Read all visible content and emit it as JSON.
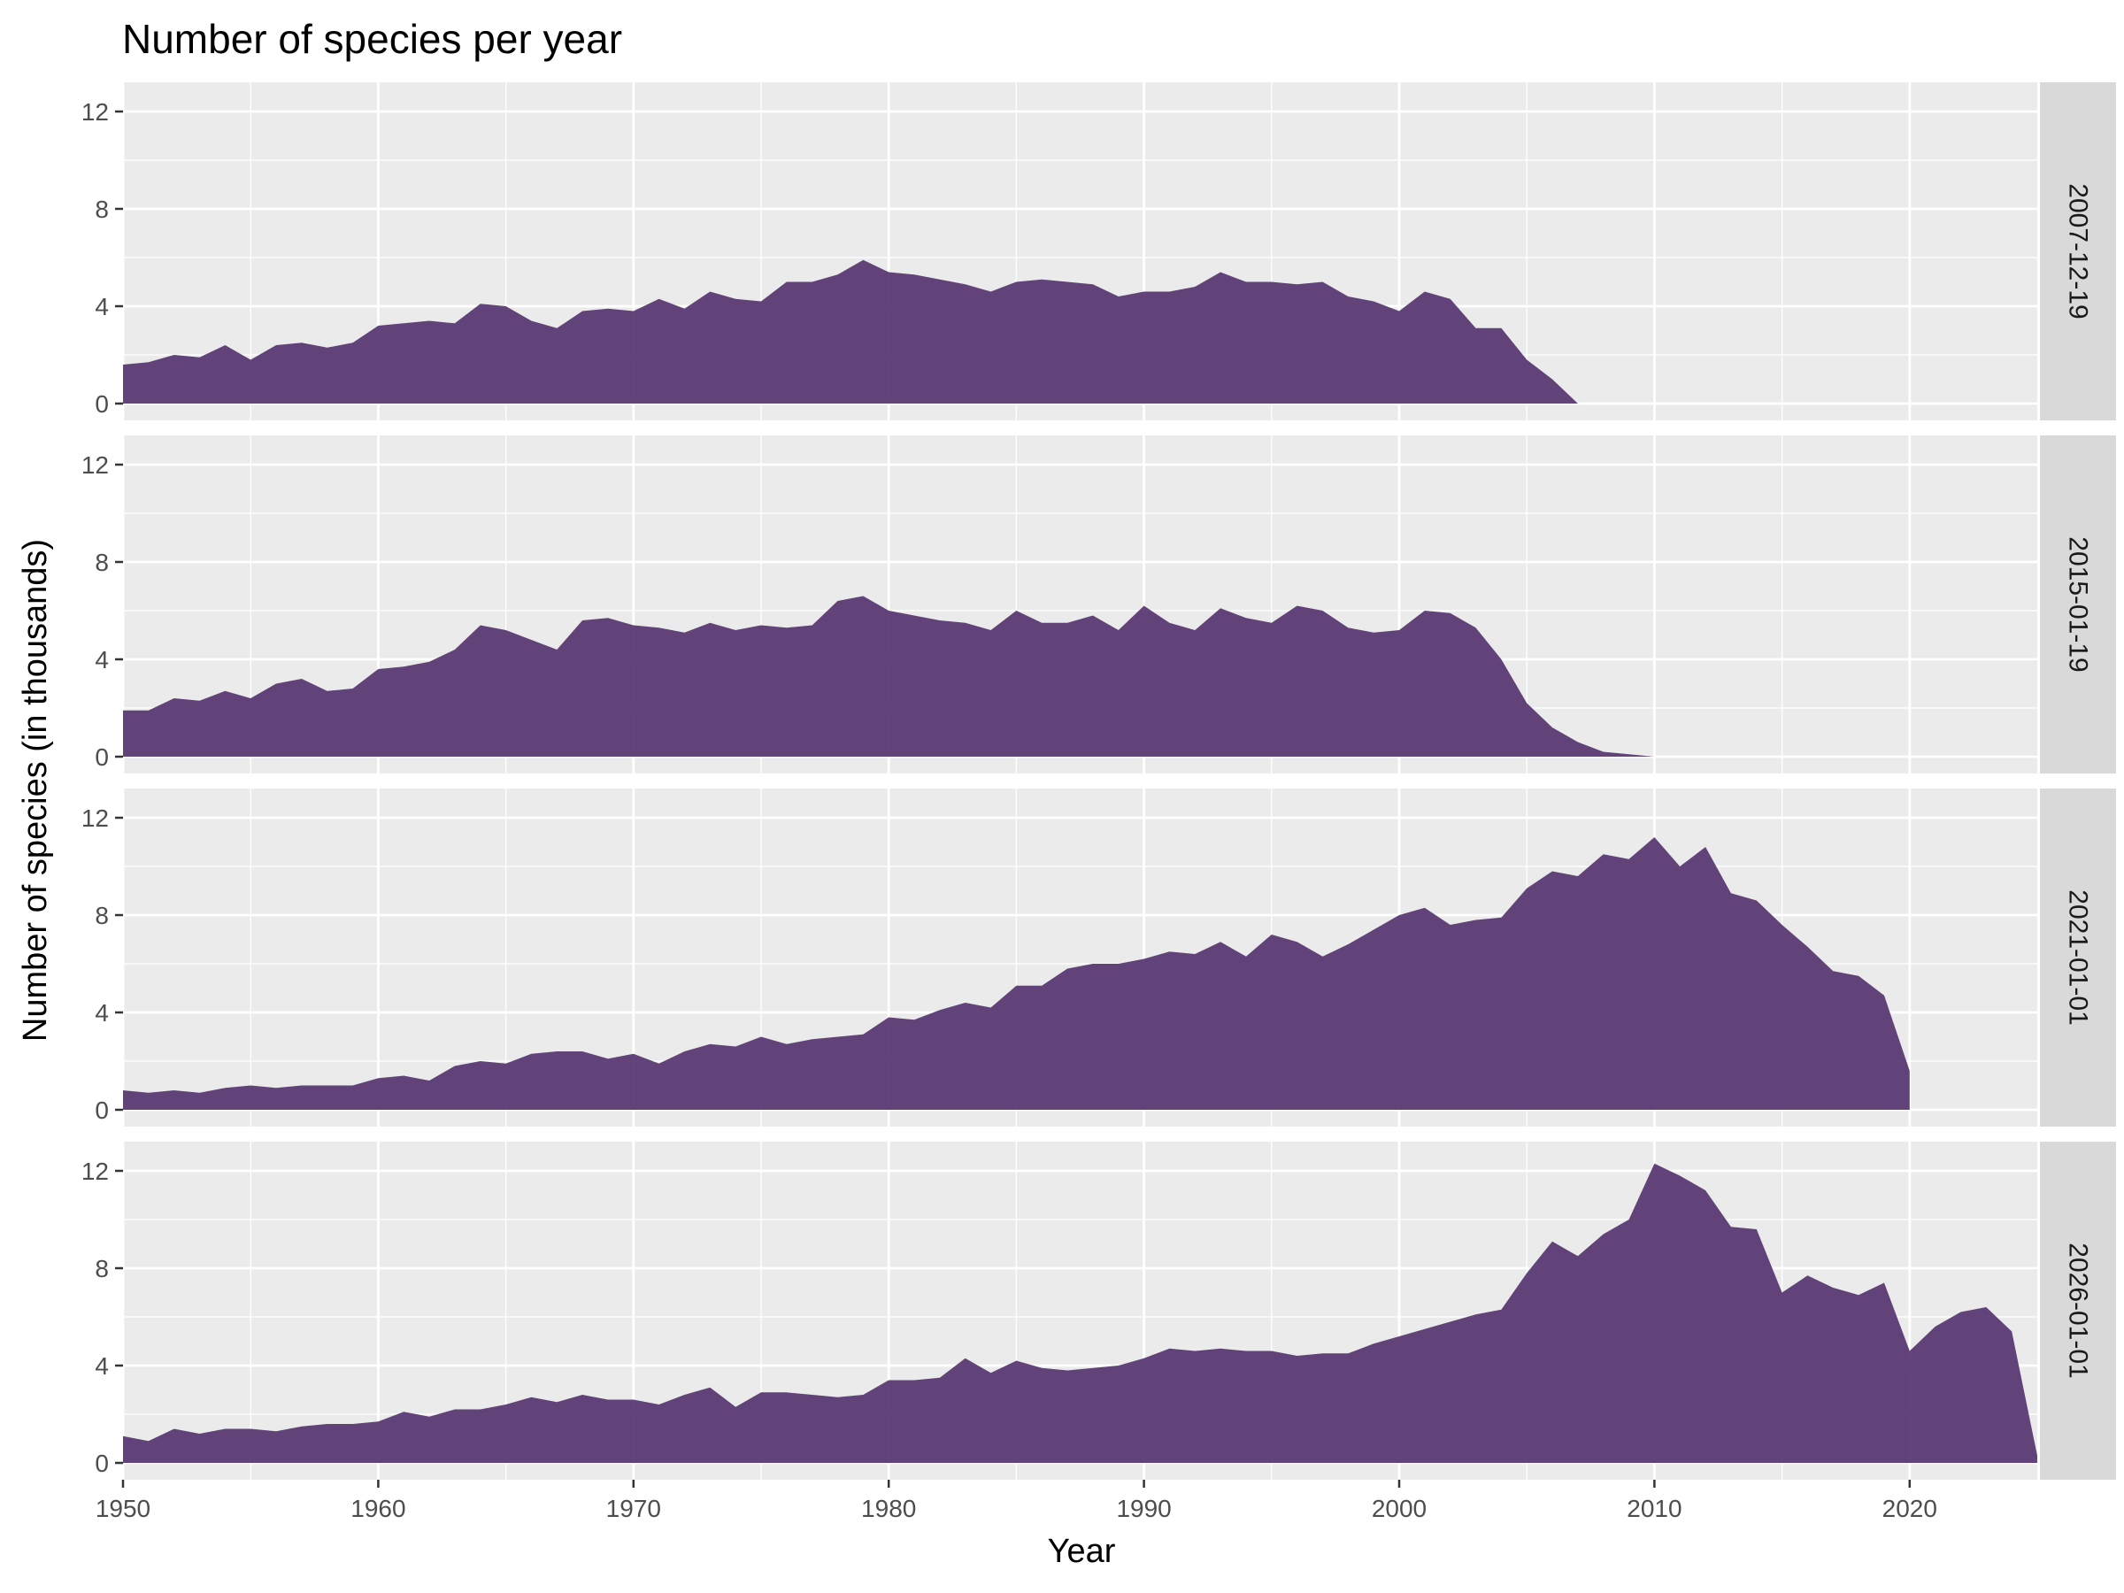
{
  "chart_data": {
    "type": "area",
    "title": "Number of species per year",
    "xlabel": "Year",
    "ylabel": "Number of species (in thousands)",
    "xlim": [
      1950,
      2025
    ],
    "ylim": [
      0,
      12.5
    ],
    "x_ticks": [
      1950,
      1960,
      1970,
      1980,
      1990,
      2000,
      2010,
      2020
    ],
    "y_ticks": [
      0,
      4,
      8,
      12
    ],
    "fill_color": "#5b3a73",
    "panel_bg": "#ebebeb",
    "strip_bg": "#d9d9d9",
    "grid": true,
    "facets": [
      {
        "label": "2007-12-19",
        "x_start": 1950,
        "values": [
          1.6,
          1.7,
          2.0,
          1.9,
          2.4,
          1.8,
          2.4,
          2.5,
          2.3,
          2.5,
          3.2,
          3.3,
          3.4,
          3.3,
          4.1,
          4.0,
          3.4,
          3.1,
          3.8,
          3.9,
          3.8,
          4.3,
          3.9,
          4.6,
          4.3,
          4.2,
          5.0,
          5.0,
          5.3,
          5.9,
          5.4,
          5.3,
          5.1,
          4.9,
          4.6,
          5.0,
          5.1,
          5.0,
          4.9,
          4.4,
          4.6,
          4.6,
          4.8,
          5.4,
          5.0,
          5.0,
          4.9,
          5.0,
          4.4,
          4.2,
          3.8,
          4.6,
          4.3,
          3.1,
          3.1,
          1.8,
          1.0,
          0.0
        ]
      },
      {
        "label": "2015-01-19",
        "x_start": 1950,
        "values": [
          1.9,
          1.9,
          2.4,
          2.3,
          2.7,
          2.4,
          3.0,
          3.2,
          2.7,
          2.8,
          3.6,
          3.7,
          3.9,
          4.4,
          5.4,
          5.2,
          4.8,
          4.4,
          5.6,
          5.7,
          5.4,
          5.3,
          5.1,
          5.5,
          5.2,
          5.4,
          5.3,
          5.4,
          6.4,
          6.6,
          6.0,
          5.8,
          5.6,
          5.5,
          5.2,
          6.0,
          5.5,
          5.5,
          5.8,
          5.2,
          6.2,
          5.5,
          5.2,
          6.1,
          5.7,
          5.5,
          6.2,
          6.0,
          5.3,
          5.1,
          5.2,
          6.0,
          5.9,
          5.3,
          4.0,
          2.2,
          1.2,
          0.6,
          0.2,
          0.1,
          0.0
        ]
      },
      {
        "label": "2021-01-01",
        "x_start": 1950,
        "values": [
          0.8,
          0.7,
          0.8,
          0.7,
          0.9,
          1.0,
          0.9,
          1.0,
          1.0,
          1.0,
          1.3,
          1.4,
          1.2,
          1.8,
          2.0,
          1.9,
          2.3,
          2.4,
          2.4,
          2.1,
          2.3,
          1.9,
          2.4,
          2.7,
          2.6,
          3.0,
          2.7,
          2.9,
          3.0,
          3.1,
          3.8,
          3.7,
          4.1,
          4.4,
          4.2,
          5.1,
          5.1,
          5.8,
          6.0,
          6.0,
          6.2,
          6.5,
          6.4,
          6.9,
          6.3,
          7.2,
          6.9,
          6.3,
          6.8,
          7.4,
          8.0,
          8.3,
          7.6,
          7.8,
          7.9,
          9.1,
          9.8,
          9.6,
          10.5,
          10.3,
          11.2,
          10.0,
          10.8,
          8.9,
          8.6,
          7.6,
          6.7,
          5.7,
          5.5,
          4.7,
          1.6
        ]
      },
      {
        "label": "2026-01-01",
        "x_start": 1950,
        "values": [
          1.1,
          0.9,
          1.4,
          1.2,
          1.4,
          1.4,
          1.3,
          1.5,
          1.6,
          1.6,
          1.7,
          2.1,
          1.9,
          2.2,
          2.2,
          2.4,
          2.7,
          2.5,
          2.8,
          2.6,
          2.6,
          2.4,
          2.8,
          3.1,
          2.3,
          2.9,
          2.9,
          2.8,
          2.7,
          2.8,
          3.4,
          3.4,
          3.5,
          4.3,
          3.7,
          4.2,
          3.9,
          3.8,
          3.9,
          4.0,
          4.3,
          4.7,
          4.6,
          4.7,
          4.6,
          4.6,
          4.4,
          4.5,
          4.5,
          4.9,
          5.2,
          5.5,
          5.8,
          6.1,
          6.3,
          7.8,
          9.1,
          8.5,
          9.4,
          10.0,
          12.3,
          11.8,
          11.2,
          9.7,
          9.6,
          7.0,
          7.7,
          7.2,
          6.9,
          7.4,
          4.6,
          5.6,
          6.2,
          6.4,
          5.4,
          0.3
        ]
      }
    ]
  }
}
